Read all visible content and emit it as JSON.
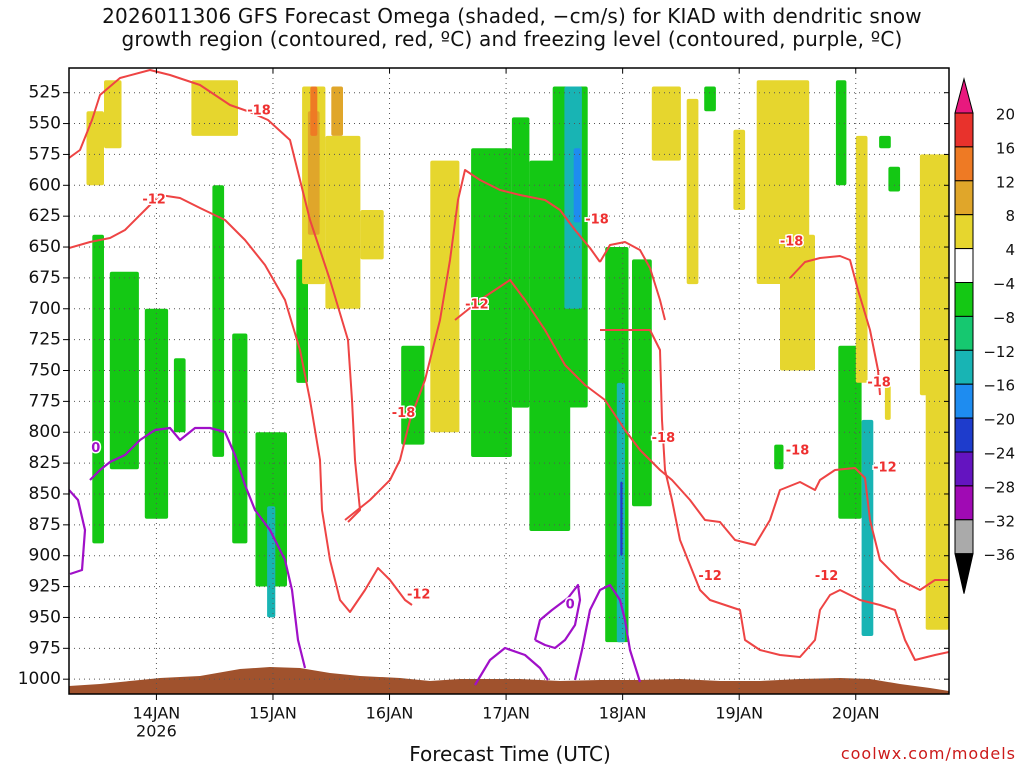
{
  "title_line1": "2026011306 GFS Forecast Omega (shaded, −cm/s) for KIAD with dendritic snow",
  "title_line2": "growth region (contoured, red, ºC) and freezing level (contoured, purple, ºC)",
  "credit": "coolwx.com/models",
  "chart_data": {
    "type": "heatmap",
    "title": "2026011306 GFS Forecast Omega (shaded, −cm/s) for KIAD with dendritic snow growth region (contoured, red, ºC) and freezing level (contoured, purple, ºC)",
    "xlabel": "Forecast Time (UTC)",
    "ylabel": "",
    "x_range_days": [
      13.25,
      20.8
    ],
    "x_ticks": [
      {
        "day": 14,
        "label": "14JAN",
        "sub": "2026"
      },
      {
        "day": 15,
        "label": "15JAN",
        "sub": ""
      },
      {
        "day": 16,
        "label": "16JAN",
        "sub": ""
      },
      {
        "day": 17,
        "label": "17JAN",
        "sub": ""
      },
      {
        "day": 18,
        "label": "18JAN",
        "sub": ""
      },
      {
        "day": 19,
        "label": "19JAN",
        "sub": ""
      },
      {
        "day": 20,
        "label": "20JAN",
        "sub": ""
      }
    ],
    "y_range_hpa": [
      1012,
      505
    ],
    "y_ticks": [
      525,
      550,
      575,
      600,
      625,
      650,
      675,
      700,
      725,
      750,
      775,
      800,
      825,
      850,
      875,
      900,
      925,
      950,
      975,
      1000
    ],
    "grid": true,
    "colorbar": {
      "labels": [
        "20",
        "16",
        "12",
        "8",
        "4",
        "−4",
        "−8",
        "−12",
        "−16",
        "−20",
        "−24",
        "−28",
        "−32",
        "−36"
      ],
      "bins": [
        {
          "range": ">20",
          "color": "#e8197e"
        },
        {
          "range": "16 to 20",
          "color": "#e8322c"
        },
        {
          "range": "12 to 16",
          "color": "#ee7a24"
        },
        {
          "range": "8 to 12",
          "color": "#e0a62a"
        },
        {
          "range": "4 to 8",
          "color": "#e6d62e"
        },
        {
          "range": "-4 to 4",
          "color": "#ffffff"
        },
        {
          "range": "-8 to -4",
          "color": "#14c814"
        },
        {
          "range": "-12 to -8",
          "color": "#16c870"
        },
        {
          "range": "-16 to -12",
          "color": "#18b4b4"
        },
        {
          "range": "-20 to -16",
          "color": "#1e8cf0"
        },
        {
          "range": "-24 to -20",
          "color": "#1e3ccc"
        },
        {
          "range": "-28 to -24",
          "color": "#6414c0"
        },
        {
          "range": "-32 to -28",
          "color": "#a00ab4"
        },
        {
          "range": "-36 to -32",
          "color": "#aaaaaa"
        },
        {
          "range": "<-36",
          "color": "#000000"
        }
      ]
    },
    "omega_regions": [
      {
        "value": -6,
        "t": [
          13.45,
          13.55
        ],
        "p": [
          640,
          890
        ]
      },
      {
        "value": -6,
        "t": [
          13.6,
          13.85
        ],
        "p": [
          670,
          830
        ]
      },
      {
        "value": -6,
        "t": [
          13.9,
          14.1
        ],
        "p": [
          700,
          870
        ]
      },
      {
        "value": -6,
        "t": [
          14.15,
          14.25
        ],
        "p": [
          740,
          800
        ]
      },
      {
        "value": -6,
        "t": [
          14.48,
          14.58
        ],
        "p": [
          600,
          820
        ]
      },
      {
        "value": -6,
        "t": [
          14.65,
          14.78
        ],
        "p": [
          720,
          890
        ]
      },
      {
        "value": -6,
        "t": [
          14.85,
          15.12
        ],
        "p": [
          800,
          925
        ]
      },
      {
        "value": -12,
        "t": [
          14.95,
          15.02
        ],
        "p": [
          860,
          950
        ]
      },
      {
        "value": -6,
        "t": [
          15.2,
          15.3
        ],
        "p": [
          660,
          760
        ]
      },
      {
        "value": -6,
        "t": [
          16.1,
          16.3
        ],
        "p": [
          730,
          810
        ]
      },
      {
        "value": -6,
        "t": [
          16.7,
          17.05
        ],
        "p": [
          570,
          820
        ]
      },
      {
        "value": -6,
        "t": [
          17.05,
          17.2
        ],
        "p": [
          545,
          780
        ]
      },
      {
        "value": -6,
        "t": [
          17.2,
          17.55
        ],
        "p": [
          580,
          880
        ]
      },
      {
        "value": -6,
        "t": [
          17.4,
          17.7
        ],
        "p": [
          520,
          780
        ]
      },
      {
        "value": -12,
        "t": [
          17.5,
          17.65
        ],
        "p": [
          520,
          700
        ]
      },
      {
        "value": -16,
        "t": [
          17.58,
          17.64
        ],
        "p": [
          570,
          630
        ]
      },
      {
        "value": -6,
        "t": [
          17.85,
          18.05
        ],
        "p": [
          650,
          970
        ]
      },
      {
        "value": -12,
        "t": [
          17.95,
          18.02
        ],
        "p": [
          760,
          970
        ]
      },
      {
        "value": -20,
        "t": [
          17.98,
          18.0
        ],
        "p": [
          840,
          900
        ]
      },
      {
        "value": -6,
        "t": [
          18.08,
          18.25
        ],
        "p": [
          660,
          860
        ]
      },
      {
        "value": -6,
        "t": [
          18.7,
          18.8
        ],
        "p": [
          520,
          540
        ]
      },
      {
        "value": -6,
        "t": [
          19.3,
          19.38
        ],
        "p": [
          810,
          830
        ]
      },
      {
        "value": -6,
        "t": [
          19.83,
          19.92
        ],
        "p": [
          515,
          600
        ]
      },
      {
        "value": -6,
        "t": [
          19.85,
          20.05
        ],
        "p": [
          730,
          870
        ]
      },
      {
        "value": -12,
        "t": [
          20.05,
          20.15
        ],
        "p": [
          790,
          965
        ]
      },
      {
        "value": -6,
        "t": [
          20.2,
          20.3
        ],
        "p": [
          560,
          570
        ]
      },
      {
        "value": -6,
        "t": [
          20.28,
          20.38
        ],
        "p": [
          585,
          605
        ]
      },
      {
        "value": 6,
        "t": [
          13.4,
          13.55
        ],
        "p": [
          540,
          600
        ]
      },
      {
        "value": 6,
        "t": [
          13.55,
          13.7
        ],
        "p": [
          515,
          570
        ]
      },
      {
        "value": 6,
        "t": [
          14.3,
          14.7
        ],
        "p": [
          515,
          560
        ]
      },
      {
        "value": 6,
        "t": [
          15.25,
          15.45
        ],
        "p": [
          520,
          680
        ]
      },
      {
        "value": 10,
        "t": [
          15.3,
          15.4
        ],
        "p": [
          540,
          640
        ]
      },
      {
        "value": 14,
        "t": [
          15.32,
          15.38
        ],
        "p": [
          520,
          560
        ]
      },
      {
        "value": 6,
        "t": [
          15.45,
          15.75
        ],
        "p": [
          560,
          700
        ]
      },
      {
        "value": 10,
        "t": [
          15.5,
          15.6
        ],
        "p": [
          520,
          560
        ]
      },
      {
        "value": 6,
        "t": [
          15.75,
          15.95
        ],
        "p": [
          620,
          660
        ]
      },
      {
        "value": 6,
        "t": [
          16.35,
          16.6
        ],
        "p": [
          580,
          800
        ]
      },
      {
        "value": 6,
        "t": [
          18.25,
          18.5
        ],
        "p": [
          520,
          580
        ]
      },
      {
        "value": 6,
        "t": [
          18.55,
          18.65
        ],
        "p": [
          530,
          680
        ]
      },
      {
        "value": 6,
        "t": [
          18.95,
          19.05
        ],
        "p": [
          555,
          620
        ]
      },
      {
        "value": 6,
        "t": [
          19.15,
          19.6
        ],
        "p": [
          515,
          680
        ]
      },
      {
        "value": 6,
        "t": [
          19.35,
          19.65
        ],
        "p": [
          640,
          750
        ]
      },
      {
        "value": 6,
        "t": [
          20.0,
          20.1
        ],
        "p": [
          560,
          760
        ]
      },
      {
        "value": 6,
        "t": [
          20.25,
          20.3
        ],
        "p": [
          760,
          790
        ]
      },
      {
        "value": 6,
        "t": [
          20.55,
          20.8
        ],
        "p": [
          575,
          770
        ]
      },
      {
        "value": 6,
        "t": [
          20.6,
          20.8
        ],
        "p": [
          720,
          960
        ]
      }
    ],
    "contour_labels_red": [
      {
        "text": "-12",
        "t": 13.98,
        "p": 612
      },
      {
        "text": "-18",
        "t": 14.88,
        "p": 540
      },
      {
        "text": "-12",
        "t": 16.75,
        "p": 697
      },
      {
        "text": "-18",
        "t": 16.12,
        "p": 785
      },
      {
        "text": "-12",
        "t": 16.25,
        "p": 932
      },
      {
        "text": "-18",
        "t": 17.78,
        "p": 628
      },
      {
        "text": "-18",
        "t": 18.35,
        "p": 805
      },
      {
        "text": "-12",
        "t": 18.75,
        "p": 917
      },
      {
        "text": "-18",
        "t": 19.5,
        "p": 815
      },
      {
        "text": "-18",
        "t": 19.45,
        "p": 646
      },
      {
        "text": "-12",
        "t": 19.75,
        "p": 917
      },
      {
        "text": "-18",
        "t": 20.2,
        "p": 760
      },
      {
        "text": "-12",
        "t": 20.25,
        "p": 829
      }
    ],
    "contour_labels_purple": [
      {
        "text": "0",
        "t": 13.48,
        "p": 813
      },
      {
        "text": "0",
        "t": 17.55,
        "p": 940
      }
    ],
    "terrain_color": "#a0522d"
  }
}
